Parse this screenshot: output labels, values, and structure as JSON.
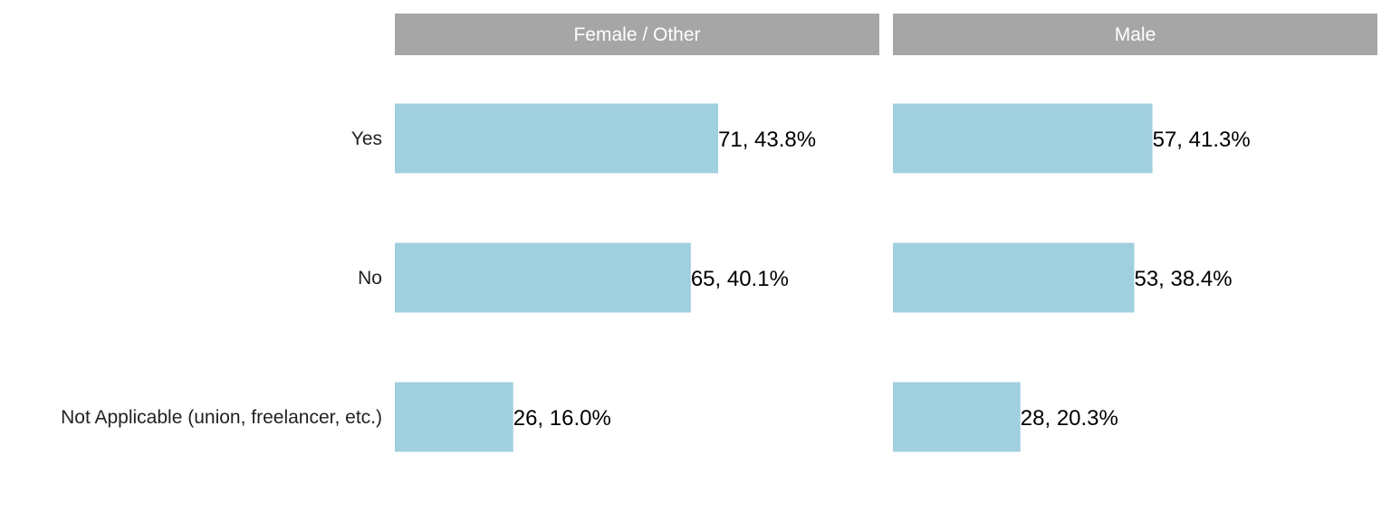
{
  "chart_data": {
    "type": "bar",
    "orientation": "horizontal",
    "facet_layout": "side-by-side",
    "categories": [
      "Yes",
      "No",
      "Not Applicable (union, freelancer, etc.)"
    ],
    "bar_color": "#a0cfe0",
    "strip_color": "#a6a6a6",
    "strip_text_color": "#ffffff",
    "xlim": [
      0,
      71
    ],
    "panels": [
      {
        "name": "Female / Other",
        "values": [
          71,
          65,
          26
        ],
        "labels": [
          "71, 43.8%",
          "65, 40.1%",
          "26, 16.0%"
        ]
      },
      {
        "name": "Male",
        "values": [
          57,
          53,
          28
        ],
        "labels": [
          "57, 41.3%",
          "53, 38.4%",
          "28, 20.3%"
        ]
      }
    ]
  }
}
